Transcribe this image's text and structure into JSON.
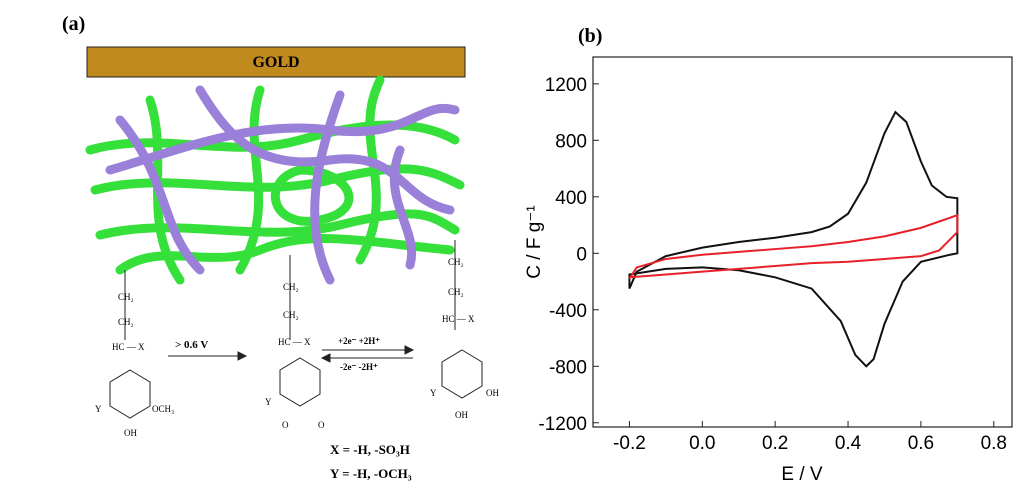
{
  "diagram": {
    "label": "(a)",
    "gold": "GOLD",
    "ch2": "CH₂",
    "hcx": "HC — X",
    "y": "Y",
    "oh": "OH",
    "och3": "OCH₃",
    "o": "O",
    "step1": "> 0.6 V",
    "fwd": "+2e⁻ +2H⁺",
    "rev": "-2e⁻ -2H⁺",
    "xdef": "X = -H, -SO₃H",
    "ydef": "Y = -H, -OCH₃"
  },
  "chart_data": {
    "type": "line",
    "label": "(b)",
    "x_label": "E / V",
    "y_label": "C / F g⁻¹",
    "xlim": [
      -0.3,
      0.85
    ],
    "ylim": [
      -1230,
      1390
    ],
    "xticks": [
      -0.2,
      {
        "value": 0,
        "label": "0.0"
      },
      0.2,
      0.4,
      0.6,
      0.8
    ],
    "yticks": [
      1200,
      800,
      400,
      0,
      -400,
      -800,
      -1200
    ],
    "series": [
      {
        "color": "#111111",
        "x": [
          -0.2,
          -0.18,
          -0.1,
          0.0,
          0.1,
          0.2,
          0.3,
          0.35,
          0.4,
          0.45,
          0.5,
          0.53,
          0.56,
          0.6,
          0.63,
          0.67,
          0.7,
          0.7,
          0.68,
          0.6,
          0.55,
          0.5,
          0.47,
          0.45,
          0.42,
          0.38,
          0.3,
          0.2,
          0.1,
          0.0,
          -0.1,
          -0.2,
          -0.2
        ],
        "values": [
          -250,
          -130,
          -20,
          40,
          80,
          110,
          150,
          190,
          280,
          500,
          850,
          1000,
          930,
          650,
          480,
          400,
          390,
          0,
          -10,
          -60,
          -200,
          -500,
          -750,
          -800,
          -720,
          -480,
          -250,
          -170,
          -120,
          -100,
          -110,
          -150,
          -250
        ]
      },
      {
        "color": "#e8202a",
        "x": [
          -0.2,
          -0.18,
          -0.1,
          0.0,
          0.1,
          0.2,
          0.3,
          0.4,
          0.5,
          0.6,
          0.7,
          0.7,
          0.65,
          0.6,
          0.5,
          0.4,
          0.3,
          0.2,
          0.1,
          0.0,
          -0.1,
          -0.2
        ],
        "values": [
          -180,
          -100,
          -40,
          -10,
          10,
          30,
          50,
          80,
          120,
          180,
          270,
          150,
          20,
          -20,
          -40,
          -60,
          -70,
          -90,
          -110,
          -130,
          -150,
          -170
        ]
      }
    ]
  }
}
